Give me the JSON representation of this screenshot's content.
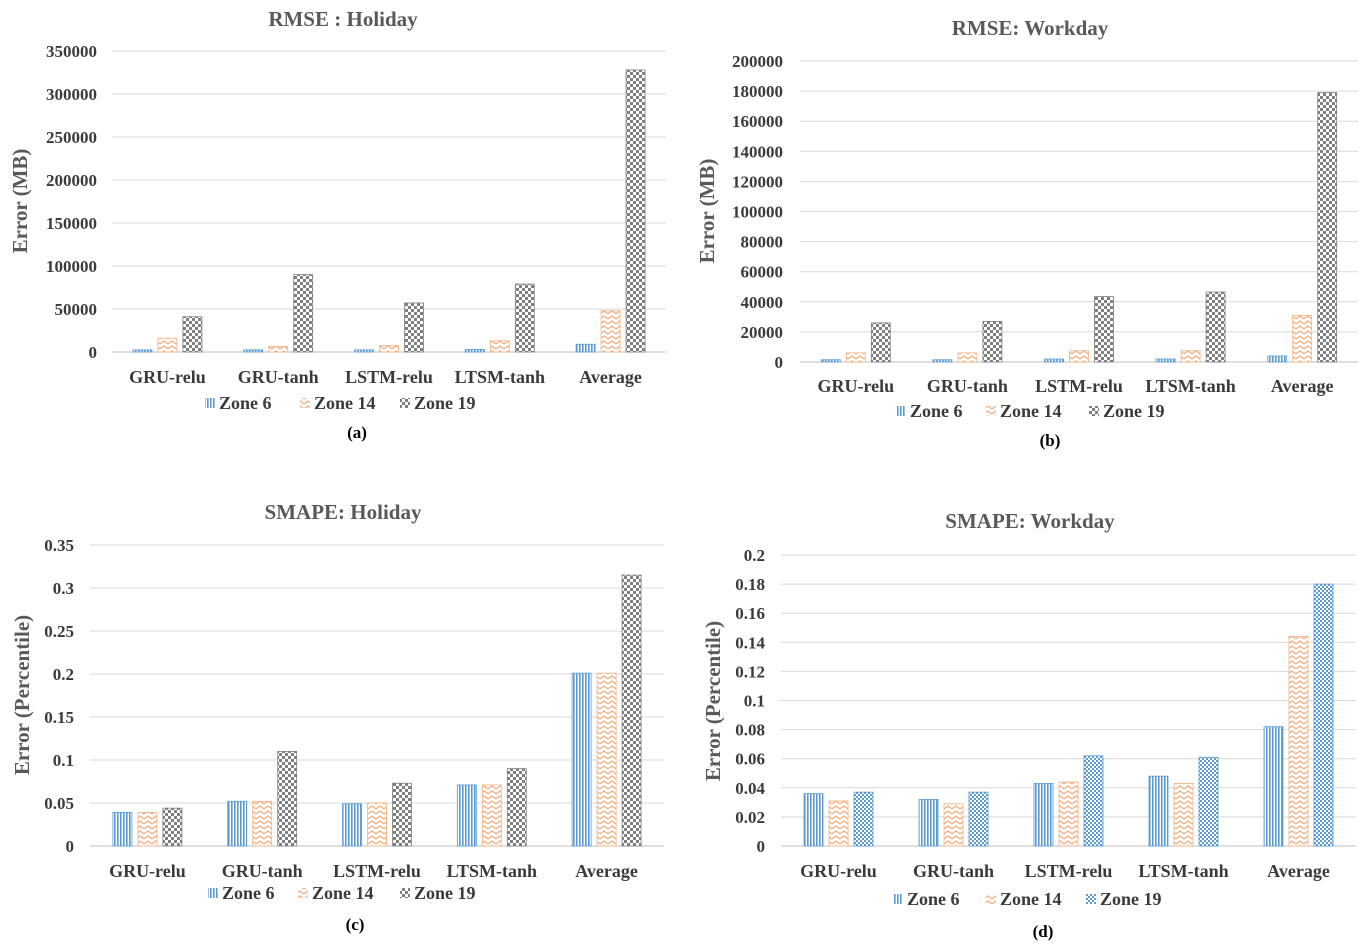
{
  "legend": [
    "Zone 6",
    "Zone 14",
    "Zone 19"
  ],
  "colors": {
    "zone6": "#5b9bd5",
    "zone14": "#f4b183",
    "zone19": "#7f7f7f",
    "zone19_blue": "#5b9bd5"
  },
  "chart_data": [
    {
      "type": "bar",
      "title": "RMSE : Holiday",
      "caption": "(a)",
      "ylabel": "Error (MB)",
      "categories": [
        "GRU-relu",
        "GRU-tanh",
        "LSTM-relu",
        "LTSM-tanh",
        "Average"
      ],
      "yticks": [
        "0",
        "50000",
        "100000",
        "150000",
        "200000",
        "250000",
        "300000",
        "350000"
      ],
      "ylim": [
        0,
        350000
      ],
      "series": [
        {
          "name": "Zone 6",
          "values": [
            2500,
            2500,
            2500,
            3000,
            9000
          ]
        },
        {
          "name": "Zone 14",
          "values": [
            16000,
            6500,
            7500,
            13000,
            48000
          ]
        },
        {
          "name": "Zone 19",
          "values": [
            41000,
            90000,
            57000,
            79000,
            328000
          ]
        }
      ]
    },
    {
      "type": "bar",
      "title": "RMSE: Workday",
      "caption": "(b)",
      "ylabel": "Error (MB)",
      "categories": [
        "GRU-relu",
        "GRU-tanh",
        "LSTM-relu",
        "LTSM-tanh",
        "Average"
      ],
      "yticks": [
        "0",
        "20000",
        "40000",
        "60000",
        "80000",
        "100000",
        "120000",
        "140000",
        "160000",
        "180000",
        "200000"
      ],
      "ylim": [
        0,
        200000
      ],
      "series": [
        {
          "name": "Zone 6",
          "values": [
            1500,
            1500,
            2000,
            2000,
            4000
          ]
        },
        {
          "name": "Zone 14",
          "values": [
            6000,
            6000,
            7500,
            7500,
            31000
          ]
        },
        {
          "name": "Zone 19",
          "values": [
            26000,
            27000,
            43500,
            46500,
            179000
          ]
        }
      ]
    },
    {
      "type": "bar",
      "title": "SMAPE: Holiday",
      "caption": "(c)",
      "ylabel": "Error (Percentile)",
      "categories": [
        "GRU-relu",
        "GRU-tanh",
        "LSTM-relu",
        "LTSM-tanh",
        "Average"
      ],
      "yticks": [
        "0",
        "0.05",
        "0.1",
        "0.15",
        "0.2",
        "0.25",
        "0.3",
        "0.35"
      ],
      "ylim": [
        0,
        0.35
      ],
      "series": [
        {
          "name": "Zone 6",
          "values": [
            0.039,
            0.052,
            0.049,
            0.071,
            0.201
          ]
        },
        {
          "name": "Zone 14",
          "values": [
            0.039,
            0.052,
            0.05,
            0.071,
            0.201
          ]
        },
        {
          "name": "Zone 19",
          "values": [
            0.044,
            0.11,
            0.073,
            0.09,
            0.315
          ]
        }
      ]
    },
    {
      "type": "bar",
      "title": "SMAPE: Workday",
      "caption": "(d)",
      "ylabel": "Error (Percentile)",
      "categories": [
        "GRU-relu",
        "GRU-tanh",
        "LSTM-relu",
        "LTSM-tanh",
        "Average"
      ],
      "yticks": [
        "0",
        "0.02",
        "0.04",
        "0.06",
        "0.08",
        "0.1",
        "0.12",
        "0.14",
        "0.16",
        "0.18",
        "0.2"
      ],
      "ylim": [
        0,
        0.2
      ],
      "series": [
        {
          "name": "Zone 6",
          "values": [
            0.036,
            0.032,
            0.043,
            0.048,
            0.082
          ]
        },
        {
          "name": "Zone 14",
          "values": [
            0.031,
            0.029,
            0.044,
            0.043,
            0.144
          ]
        },
        {
          "name": "Zone 19",
          "values": [
            0.037,
            0.037,
            0.062,
            0.061,
            0.18
          ]
        }
      ]
    }
  ]
}
